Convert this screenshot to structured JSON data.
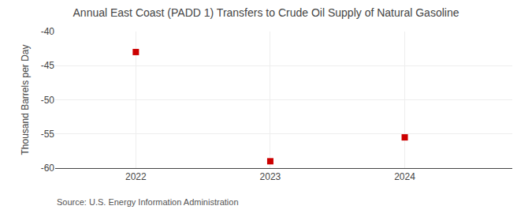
{
  "chart_data": {
    "type": "scatter",
    "title": "Annual East Coast (PADD 1) Transfers to Crude Oil Supply of Natural Gasoline",
    "ylabel": "Thousand Barrels per Day",
    "annotation": "Source: U.S. Energy Information Administration",
    "x": [
      2022,
      2023,
      2024
    ],
    "values": [
      -43.0,
      -59.0,
      -55.5
    ],
    "color": "#cc0000",
    "marker": "square",
    "xlim": [
      2021.4,
      2024.8
    ],
    "xticks": [
      2022,
      2023,
      2024
    ],
    "ylim": [
      -60,
      -40
    ],
    "yticks": [
      -60,
      -55,
      -50,
      -45,
      -40
    ],
    "grid": true
  }
}
